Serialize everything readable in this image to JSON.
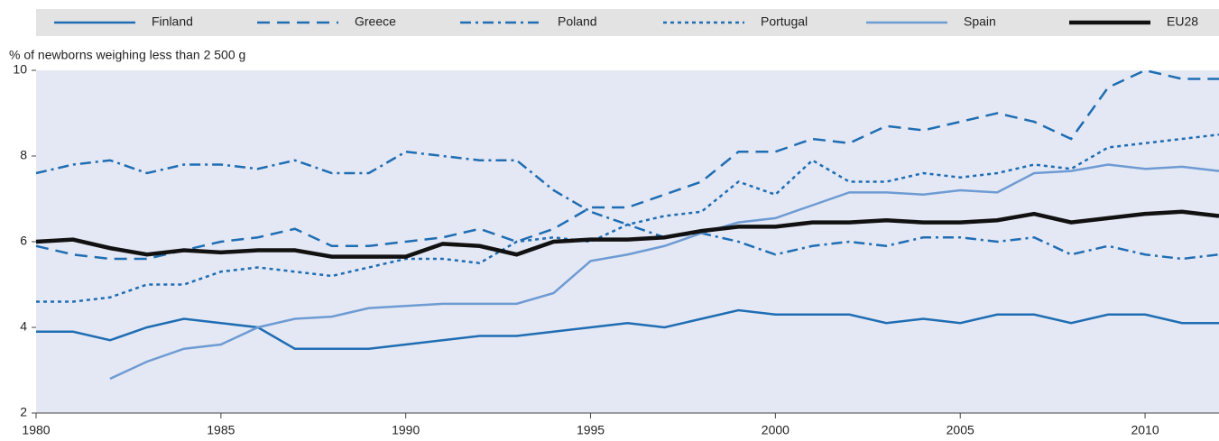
{
  "chart_data": {
    "type": "line",
    "y_label": "% of newborns weighing less than 2 500 g",
    "x": [
      1980,
      1981,
      1982,
      1983,
      1984,
      1985,
      1986,
      1987,
      1988,
      1989,
      1990,
      1991,
      1992,
      1993,
      1994,
      1995,
      1996,
      1997,
      1998,
      1999,
      2000,
      2001,
      2002,
      2003,
      2004,
      2005,
      2006,
      2007,
      2008,
      2009,
      2010,
      2011,
      2012
    ],
    "series": [
      {
        "name": "Finland",
        "color": "#1f6db3",
        "style": "solid",
        "width": 2.5,
        "values": [
          3.9,
          3.9,
          3.7,
          4.0,
          4.2,
          4.1,
          4.0,
          3.5,
          3.5,
          3.5,
          3.6,
          3.7,
          3.8,
          3.8,
          3.9,
          4.0,
          4.1,
          4.0,
          4.2,
          4.4,
          4.3,
          4.3,
          4.3,
          4.1,
          4.2,
          4.1,
          4.3,
          4.3,
          4.1,
          4.3,
          4.3,
          4.1,
          4.1
        ]
      },
      {
        "name": "Greece",
        "color": "#1f6db3",
        "style": "dashed",
        "width": 2.5,
        "values": [
          5.9,
          5.7,
          5.6,
          5.6,
          5.8,
          6.0,
          6.1,
          6.3,
          5.9,
          5.9,
          6.0,
          6.1,
          6.3,
          6.0,
          6.3,
          6.8,
          6.8,
          7.1,
          7.4,
          8.1,
          8.1,
          8.4,
          8.3,
          8.7,
          8.6,
          8.8,
          9.0,
          8.8,
          8.4,
          9.6,
          10.0,
          9.8,
          9.8
        ]
      },
      {
        "name": "Poland",
        "color": "#1f6db3",
        "style": "dashdot",
        "width": 2.5,
        "values": [
          7.6,
          7.8,
          7.9,
          7.6,
          7.8,
          7.8,
          7.7,
          7.9,
          7.6,
          7.6,
          8.1,
          8.0,
          7.9,
          7.9,
          7.2,
          6.7,
          6.4,
          6.1,
          6.2,
          6.0,
          5.7,
          5.9,
          6.0,
          5.9,
          6.1,
          6.1,
          6.0,
          6.1,
          5.7,
          5.9,
          5.7,
          5.6,
          5.7
        ]
      },
      {
        "name": "Portugal",
        "color": "#1f6db3",
        "style": "dotted",
        "width": 2.5,
        "values": [
          4.6,
          4.6,
          4.7,
          5.0,
          5.0,
          5.3,
          5.4,
          5.3,
          5.2,
          5.4,
          5.6,
          5.6,
          5.5,
          6.0,
          6.1,
          6.0,
          6.4,
          6.6,
          6.7,
          7.4,
          7.1,
          7.9,
          7.4,
          7.4,
          7.6,
          7.5,
          7.6,
          7.8,
          7.7,
          8.2,
          8.3,
          8.4,
          8.5
        ]
      },
      {
        "name": "Spain",
        "color": "#6e9bd3",
        "style": "solid",
        "width": 2.5,
        "values": [
          null,
          null,
          2.8,
          3.2,
          3.5,
          3.6,
          4.0,
          4.2,
          4.25,
          4.45,
          4.5,
          4.55,
          4.55,
          4.55,
          4.8,
          5.55,
          5.7,
          5.9,
          6.2,
          6.45,
          6.55,
          6.85,
          7.15,
          7.15,
          7.1,
          7.2,
          7.15,
          7.6,
          7.65,
          7.8,
          7.7,
          7.75,
          7.65
        ]
      },
      {
        "name": "EU28",
        "color": "#111111",
        "style": "solid",
        "width": 4.5,
        "values": [
          6.0,
          6.05,
          5.85,
          5.7,
          5.8,
          5.75,
          5.8,
          5.8,
          5.65,
          5.65,
          5.65,
          5.95,
          5.9,
          5.7,
          6.0,
          6.05,
          6.05,
          6.1,
          6.25,
          6.35,
          6.35,
          6.45,
          6.45,
          6.5,
          6.45,
          6.45,
          6.5,
          6.65,
          6.45,
          6.55,
          6.65,
          6.7,
          6.6
        ]
      }
    ],
    "xlim": [
      1980,
      2012
    ],
    "xticks": [
      1980,
      1985,
      1990,
      1995,
      2000,
      2005,
      2010
    ],
    "ylim": [
      2,
      10
    ],
    "yticks": [
      2,
      4,
      6,
      8,
      10
    ]
  }
}
